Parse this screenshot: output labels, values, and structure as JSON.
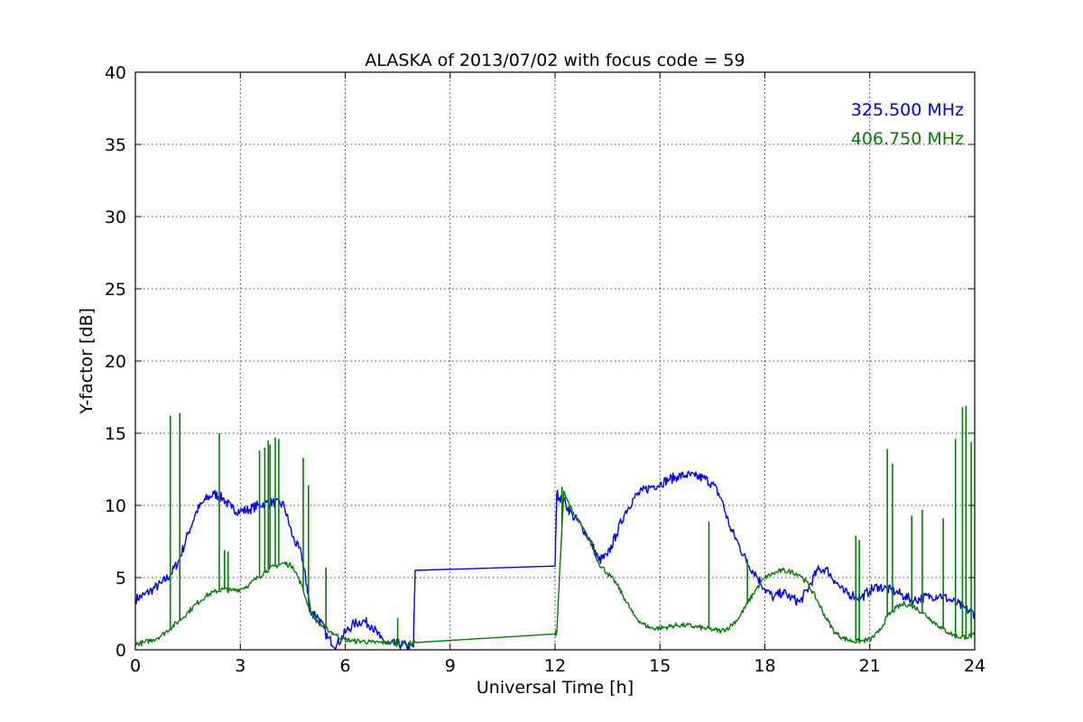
{
  "chart_data": {
    "type": "line",
    "title": "ALASKA of 2013/07/02 with focus code = 59",
    "xlabel": "Universal Time [h]",
    "ylabel": "Y-factor [dB]",
    "xlim": [
      0,
      24
    ],
    "ylim": [
      0,
      40
    ],
    "xticks": [
      0,
      3,
      6,
      9,
      12,
      15,
      18,
      21,
      24
    ],
    "yticks": [
      0,
      5,
      10,
      15,
      20,
      25,
      30,
      35,
      40
    ],
    "grid": true,
    "legend_position": "top-right",
    "series": [
      {
        "name": "325.500 MHz",
        "color": "#0000ff",
        "x": [
          0,
          0.25,
          0.5,
          0.75,
          1.0,
          1.25,
          1.5,
          1.75,
          2.0,
          2.25,
          2.5,
          2.75,
          3.0,
          3.25,
          3.5,
          3.75,
          4.0,
          4.25,
          4.5,
          4.75,
          4.9,
          5.0,
          5.25,
          5.5,
          5.75,
          6.0,
          6.25,
          6.5,
          6.75,
          7.0,
          7.25,
          7.5,
          7.75,
          7.95,
          8.0,
          12.0,
          12.05,
          12.25,
          12.5,
          12.75,
          13.0,
          13.25,
          13.5,
          13.75,
          14.0,
          14.25,
          14.5,
          14.75,
          15.0,
          15.25,
          15.5,
          15.75,
          16.0,
          16.25,
          16.5,
          16.75,
          17.0,
          17.25,
          17.5,
          17.75,
          18.0,
          18.25,
          18.5,
          18.75,
          19.0,
          19.25,
          19.5,
          19.75,
          20.0,
          20.25,
          20.5,
          20.75,
          21.0,
          21.25,
          21.5,
          21.75,
          22.0,
          22.25,
          22.5,
          22.75,
          23.0,
          23.25,
          23.5,
          23.75,
          24.0
        ],
        "values": [
          3.5,
          3.8,
          4.2,
          4.6,
          5.2,
          6.2,
          8.0,
          9.6,
          10.4,
          10.8,
          10.5,
          9.8,
          9.6,
          9.7,
          10.0,
          10.2,
          10.2,
          10.0,
          7.8,
          6.6,
          4.5,
          2.8,
          2.2,
          0.8,
          0.3,
          1.2,
          1.8,
          2.0,
          1.7,
          0.8,
          0.4,
          0.4,
          0.3,
          0.2,
          5.5,
          5.8,
          10.8,
          10.3,
          9.3,
          8.6,
          7.6,
          6.2,
          6.5,
          8.0,
          9.5,
          10.5,
          11.0,
          11.3,
          11.5,
          11.8,
          12.0,
          12.1,
          12.0,
          11.9,
          11.5,
          10.5,
          8.5,
          7.3,
          6.0,
          5.2,
          4.2,
          3.6,
          4.0,
          3.6,
          3.3,
          4.3,
          5.5,
          5.6,
          4.8,
          4.0,
          3.8,
          3.6,
          4.1,
          4.4,
          4.2,
          4.0,
          3.7,
          3.4,
          3.6,
          3.7,
          3.8,
          3.5,
          3.2,
          2.8,
          2.5
        ]
      },
      {
        "name": "406.750 MHz",
        "color": "#008000",
        "x": [
          0,
          0.25,
          0.5,
          0.75,
          1.0,
          1.25,
          1.5,
          1.75,
          2.0,
          2.25,
          2.5,
          2.75,
          3.0,
          3.25,
          3.5,
          3.75,
          4.0,
          4.25,
          4.5,
          4.75,
          5.0,
          5.25,
          5.5,
          5.75,
          6.0,
          6.25,
          6.5,
          6.75,
          7.0,
          7.25,
          7.5,
          7.75,
          8.0,
          12.0,
          12.05,
          12.25,
          12.5,
          12.75,
          13.0,
          13.25,
          13.5,
          13.75,
          14.0,
          14.25,
          14.5,
          14.75,
          15.0,
          15.25,
          15.5,
          15.75,
          16.0,
          16.25,
          16.5,
          16.75,
          17.0,
          17.25,
          17.5,
          17.75,
          18.0,
          18.25,
          18.5,
          18.75,
          19.0,
          19.25,
          19.5,
          19.75,
          20.0,
          20.25,
          20.5,
          20.75,
          21.0,
          21.25,
          21.5,
          21.75,
          22.0,
          22.25,
          22.5,
          22.75,
          23.0,
          23.25,
          23.5,
          23.75,
          24.0
        ],
        "values": [
          0.4,
          0.5,
          0.7,
          1.0,
          1.5,
          2.0,
          2.6,
          3.2,
          3.7,
          4.0,
          4.2,
          4.1,
          4.2,
          4.5,
          5.0,
          5.5,
          5.8,
          6.0,
          5.8,
          4.5,
          2.6,
          1.8,
          1.4,
          1.0,
          0.7,
          0.6,
          0.6,
          0.5,
          0.5,
          0.5,
          0.4,
          0.4,
          0.5,
          1.1,
          1.2,
          11.0,
          9.5,
          8.6,
          7.5,
          6.0,
          5.3,
          4.6,
          3.5,
          2.4,
          1.8,
          1.5,
          1.5,
          1.6,
          1.7,
          1.7,
          1.6,
          1.5,
          1.4,
          1.3,
          1.6,
          2.2,
          3.2,
          4.2,
          5.0,
          5.3,
          5.5,
          5.4,
          5.2,
          4.5,
          3.4,
          2.2,
          1.2,
          0.8,
          0.6,
          0.6,
          0.7,
          1.2,
          2.3,
          2.9,
          3.2,
          3.0,
          2.6,
          2.1,
          1.6,
          1.2,
          0.9,
          0.9,
          1.0
        ],
        "spikes": [
          [
            1.0,
            16.2
          ],
          [
            1.27,
            16.4
          ],
          [
            2.4,
            15.0
          ],
          [
            2.55,
            6.9
          ],
          [
            2.65,
            6.8
          ],
          [
            3.55,
            13.8
          ],
          [
            3.7,
            14.0
          ],
          [
            3.8,
            14.5
          ],
          [
            3.85,
            14.2
          ],
          [
            4.0,
            14.7
          ],
          [
            4.1,
            14.6
          ],
          [
            4.8,
            13.3
          ],
          [
            4.95,
            11.4
          ],
          [
            5.45,
            5.7
          ],
          [
            7.5,
            2.2
          ],
          [
            12.2,
            11.3
          ],
          [
            16.4,
            8.9
          ],
          [
            17.5,
            6.3
          ],
          [
            20.6,
            7.9
          ],
          [
            20.7,
            7.6
          ],
          [
            21.5,
            13.9
          ],
          [
            21.65,
            12.9
          ],
          [
            22.2,
            9.3
          ],
          [
            22.5,
            9.7
          ],
          [
            23.1,
            9.1
          ],
          [
            23.45,
            14.6
          ],
          [
            23.65,
            16.8
          ],
          [
            23.75,
            16.9
          ],
          [
            23.9,
            14.4
          ]
        ]
      }
    ]
  }
}
